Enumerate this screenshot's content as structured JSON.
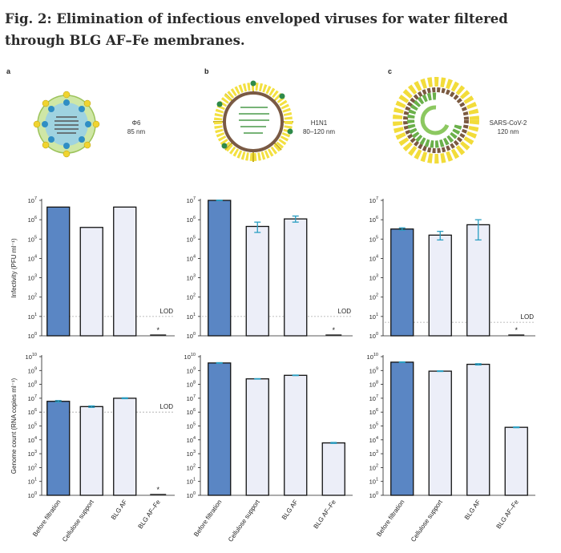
{
  "figure": {
    "title": "Fig. 2: Elimination of infectious enveloped viruses for water filtered through BLG AF–Fe membranes."
  },
  "panels": [
    {
      "letter": "a",
      "virus_name": "Φ6",
      "virus_size": "85 nm"
    },
    {
      "letter": "b",
      "virus_name": "H1N1",
      "virus_size": "80–120 nm"
    },
    {
      "letter": "c",
      "virus_name": "SARS-CoV-2",
      "virus_size": "120 nm"
    }
  ],
  "lod_label": "LOD",
  "star_label": "*",
  "colors": {
    "before_filtration": "#5a86c4",
    "other_bars": "#eceef8",
    "error_bar": "#2a9ec2",
    "lod_line": "#aaaaaa",
    "axis": "#222222"
  },
  "chart_data": [
    {
      "type": "bar",
      "panel": "a",
      "row": "infectivity",
      "ylabel": "Infectivity (PFU ml⁻¹)",
      "yscale": "log",
      "ylim": [
        1,
        10000000
      ],
      "yticks": [
        {
          "base": "10",
          "exp": "0"
        },
        {
          "base": "10",
          "exp": "1"
        },
        {
          "base": "10",
          "exp": "2"
        },
        {
          "base": "10",
          "exp": "3"
        },
        {
          "base": "10",
          "exp": "4"
        },
        {
          "base": "10",
          "exp": "5"
        },
        {
          "base": "10",
          "exp": "6"
        },
        {
          "base": "10",
          "exp": "7"
        }
      ],
      "categories": [
        "Before filtration",
        "Cellulose support",
        "BLG AF",
        "BLG AF–Fe"
      ],
      "values": [
        4500000,
        400000,
        4500000,
        null
      ],
      "errors": [
        null,
        null,
        null,
        null
      ],
      "below_lod": [
        false,
        false,
        false,
        true
      ],
      "lod": 10
    },
    {
      "type": "bar",
      "panel": "b",
      "row": "infectivity",
      "ylabel": "",
      "yscale": "log",
      "ylim": [
        1,
        10000000
      ],
      "yticks": [
        {
          "base": "10",
          "exp": "0"
        },
        {
          "base": "10",
          "exp": "1"
        },
        {
          "base": "10",
          "exp": "2"
        },
        {
          "base": "10",
          "exp": "3"
        },
        {
          "base": "10",
          "exp": "4"
        },
        {
          "base": "10",
          "exp": "5"
        },
        {
          "base": "10",
          "exp": "6"
        },
        {
          "base": "10",
          "exp": "7"
        }
      ],
      "categories": [
        "Before filtration",
        "Cellulose support",
        "BLG AF",
        "BLG AF–Fe"
      ],
      "values": [
        10000000,
        450000,
        1100000,
        null
      ],
      "errors": [
        [
          9700000,
          10300000
        ],
        [
          220000,
          750000
        ],
        [
          750000,
          1550000
        ],
        null
      ],
      "below_lod": [
        false,
        false,
        false,
        true
      ],
      "lod": 10
    },
    {
      "type": "bar",
      "panel": "c",
      "row": "infectivity",
      "ylabel": "",
      "yscale": "log",
      "ylim": [
        1,
        10000000
      ],
      "yticks": [
        {
          "base": "10",
          "exp": "0"
        },
        {
          "base": "10",
          "exp": "1"
        },
        {
          "base": "10",
          "exp": "2"
        },
        {
          "base": "10",
          "exp": "3"
        },
        {
          "base": "10",
          "exp": "4"
        },
        {
          "base": "10",
          "exp": "5"
        },
        {
          "base": "10",
          "exp": "6"
        },
        {
          "base": "10",
          "exp": "7"
        }
      ],
      "categories": [
        "Before filtration",
        "Cellulose support",
        "BLG AF",
        "BLG AF–Fe"
      ],
      "values": [
        330000,
        160000,
        550000,
        null
      ],
      "errors": [
        [
          290000,
          380000
        ],
        [
          90000,
          250000
        ],
        [
          90000,
          1000000
        ],
        null
      ],
      "below_lod": [
        false,
        false,
        false,
        true
      ],
      "lod": 5
    },
    {
      "type": "bar",
      "panel": "a",
      "row": "genome",
      "ylabel": "Genome count (RNA copies ml⁻¹)",
      "yscale": "log",
      "ylim": [
        1,
        10000000000
      ],
      "yticks": [
        {
          "base": "10",
          "exp": "0"
        },
        {
          "base": "10",
          "exp": "1"
        },
        {
          "base": "10",
          "exp": "2"
        },
        {
          "base": "10",
          "exp": "3"
        },
        {
          "base": "10",
          "exp": "4"
        },
        {
          "base": "10",
          "exp": "5"
        },
        {
          "base": "10",
          "exp": "6"
        },
        {
          "base": "10",
          "exp": "7"
        },
        {
          "base": "10",
          "exp": "8"
        },
        {
          "base": "10",
          "exp": "9"
        },
        {
          "base": "10",
          "exp": "10"
        }
      ],
      "categories": [
        "Before filtration",
        "Cellulose support",
        "BLG AF",
        "BLG AF–Fe"
      ],
      "values": [
        6000000,
        2500000,
        10000000,
        null
      ],
      "errors": [
        [
          5300000,
          6800000
        ],
        [
          2200000,
          2800000
        ],
        [
          9300000,
          10800000
        ],
        null
      ],
      "below_lod": [
        false,
        false,
        false,
        true
      ],
      "lod": 1000000
    },
    {
      "type": "bar",
      "panel": "b",
      "row": "genome",
      "ylabel": "",
      "yscale": "log",
      "ylim": [
        1,
        10000000000
      ],
      "yticks": [
        {
          "base": "10",
          "exp": "0"
        },
        {
          "base": "10",
          "exp": "1"
        },
        {
          "base": "10",
          "exp": "2"
        },
        {
          "base": "10",
          "exp": "3"
        },
        {
          "base": "10",
          "exp": "4"
        },
        {
          "base": "10",
          "exp": "5"
        },
        {
          "base": "10",
          "exp": "6"
        },
        {
          "base": "10",
          "exp": "7"
        },
        {
          "base": "10",
          "exp": "8"
        },
        {
          "base": "10",
          "exp": "9"
        },
        {
          "base": "10",
          "exp": "10"
        }
      ],
      "categories": [
        "Before filtration",
        "Cellulose support",
        "BLG AF",
        "BLG AF–Fe"
      ],
      "values": [
        3500000000,
        250000000,
        450000000,
        6000
      ],
      "errors": [
        [
          3300000000,
          3700000000
        ],
        [
          240000000,
          260000000
        ],
        [
          430000000,
          470000000
        ],
        [
          5500,
          6500
        ]
      ],
      "below_lod": [
        false,
        false,
        false,
        false
      ],
      "lod": null
    },
    {
      "type": "bar",
      "panel": "c",
      "row": "genome",
      "ylabel": "",
      "yscale": "log",
      "ylim": [
        1,
        10000000000
      ],
      "yticks": [
        {
          "base": "10",
          "exp": "0"
        },
        {
          "base": "10",
          "exp": "1"
        },
        {
          "base": "10",
          "exp": "2"
        },
        {
          "base": "10",
          "exp": "3"
        },
        {
          "base": "10",
          "exp": "4"
        },
        {
          "base": "10",
          "exp": "5"
        },
        {
          "base": "10",
          "exp": "6"
        },
        {
          "base": "10",
          "exp": "7"
        },
        {
          "base": "10",
          "exp": "8"
        },
        {
          "base": "10",
          "exp": "9"
        },
        {
          "base": "10",
          "exp": "10"
        }
      ],
      "categories": [
        "Before filtration",
        "Cellulose support",
        "BLG AF",
        "BLG AF–Fe"
      ],
      "values": [
        4000000000,
        900000000,
        2800000000,
        80000
      ],
      "errors": [
        [
          3800000000,
          4200000000
        ],
        [
          850000000,
          950000000
        ],
        [
          2500000000,
          3100000000
        ],
        [
          75000,
          85000
        ]
      ],
      "below_lod": [
        false,
        false,
        false,
        false
      ],
      "lod": null
    }
  ]
}
